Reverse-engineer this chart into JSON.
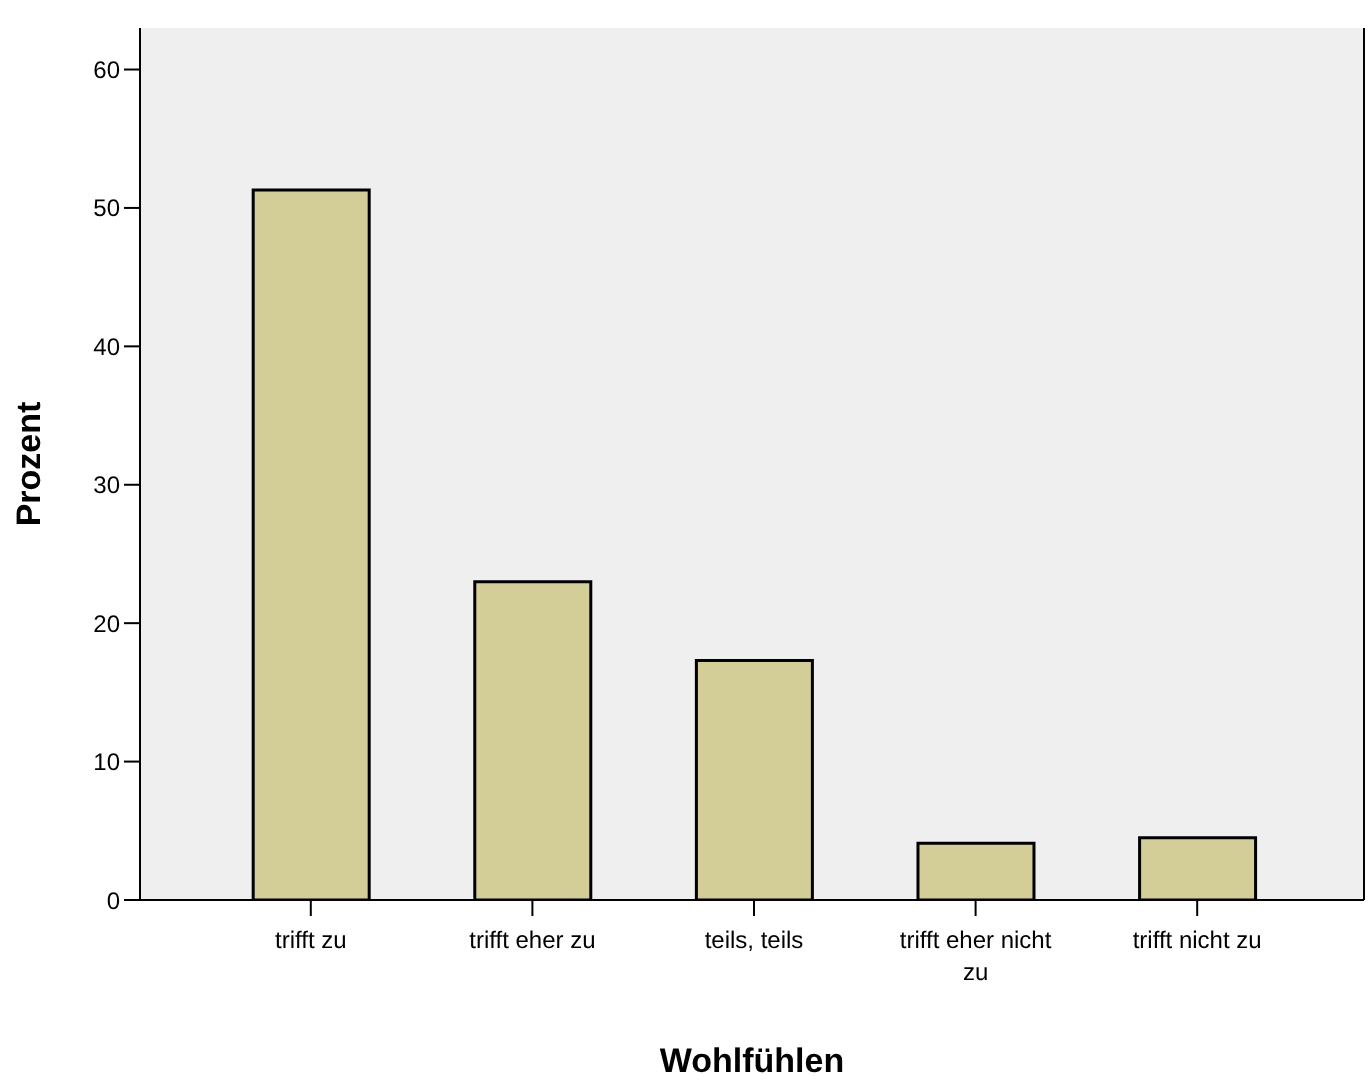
{
  "chart_data": {
    "type": "bar",
    "xlabel": "Wohlfühlen",
    "ylabel": "Prozent",
    "categories": [
      "trifft zu",
      "trifft eher zu",
      "teils, teils",
      "trifft eher nicht zu",
      "trifft nicht zu"
    ],
    "values": [
      51.3,
      23.0,
      17.3,
      4.1,
      4.5
    ],
    "color": "#d3cd98",
    "ylim": [
      0,
      63
    ],
    "yticks": [
      0,
      10,
      20,
      30,
      40,
      50,
      60
    ],
    "grid": false,
    "legend": false
  }
}
